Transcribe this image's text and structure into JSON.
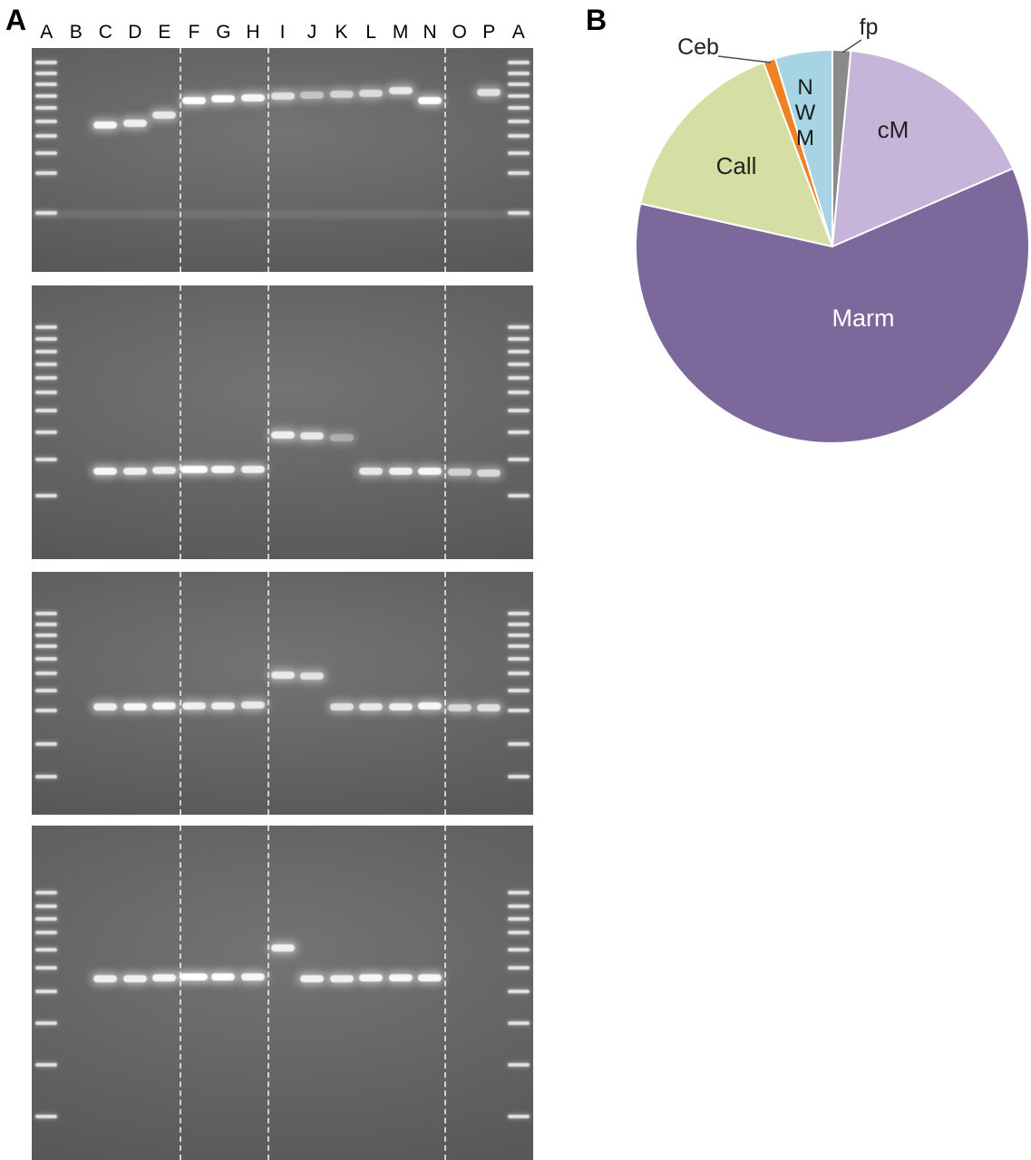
{
  "panels": {
    "a_label": "A",
    "b_label": "B"
  },
  "gel_panel": {
    "lane_labels": [
      "A",
      "B",
      "C",
      "D",
      "E",
      "F",
      "G",
      "H",
      "I",
      "J",
      "K",
      "L",
      "M",
      "N",
      "O",
      "P",
      "A"
    ],
    "group_dividers": [
      0.2941,
      0.4706,
      0.8235
    ],
    "gels": [
      {
        "id": "gel-1",
        "ladder_rungs": [
          0.055,
          0.105,
          0.155,
          0.205,
          0.26,
          0.32,
          0.385,
          0.46,
          0.55,
          0.73
        ],
        "smear_y": 0.745,
        "bands": [
          {
            "lane": "C",
            "y": 0.345,
            "i": 0.95
          },
          {
            "lane": "D",
            "y": 0.335,
            "i": 0.9
          },
          {
            "lane": "E",
            "y": 0.3,
            "i": 0.85
          },
          {
            "lane": "F",
            "y": 0.235,
            "i": 1.0
          },
          {
            "lane": "G",
            "y": 0.228,
            "i": 1.0
          },
          {
            "lane": "H",
            "y": 0.222,
            "i": 0.95
          },
          {
            "lane": "I",
            "y": 0.215,
            "i": 0.8
          },
          {
            "lane": "J",
            "y": 0.212,
            "i": 0.6
          },
          {
            "lane": "K",
            "y": 0.206,
            "i": 0.7
          },
          {
            "lane": "L",
            "y": 0.202,
            "i": 0.75
          },
          {
            "lane": "M",
            "y": 0.19,
            "i": 0.85
          },
          {
            "lane": "N",
            "y": 0.235,
            "i": 1.0
          },
          {
            "lane": "P",
            "y": 0.2,
            "i": 0.8
          }
        ]
      },
      {
        "id": "gel-2",
        "ladder_rungs": [
          0.145,
          0.19,
          0.235,
          0.28,
          0.33,
          0.385,
          0.45,
          0.53,
          0.63,
          0.76
        ],
        "bands": [
          {
            "lane": "C",
            "y": 0.68,
            "i": 0.95
          },
          {
            "lane": "D",
            "y": 0.68,
            "i": 0.9
          },
          {
            "lane": "E",
            "y": 0.675,
            "i": 0.9
          },
          {
            "lane": "F",
            "y": 0.672,
            "i": 1.0,
            "w": 1.15
          },
          {
            "lane": "G",
            "y": 0.672,
            "i": 0.95
          },
          {
            "lane": "H",
            "y": 0.672,
            "i": 0.9
          },
          {
            "lane": "I",
            "y": 0.548,
            "i": 0.9
          },
          {
            "lane": "J",
            "y": 0.551,
            "i": 0.85
          },
          {
            "lane": "K",
            "y": 0.556,
            "i": 0.45
          },
          {
            "lane": "L",
            "y": 0.68,
            "i": 0.85
          },
          {
            "lane": "M",
            "y": 0.68,
            "i": 0.9
          },
          {
            "lane": "N",
            "y": 0.68,
            "i": 0.95
          },
          {
            "lane": "O",
            "y": 0.682,
            "i": 0.7
          },
          {
            "lane": "P",
            "y": 0.684,
            "i": 0.75
          }
        ]
      },
      {
        "id": "gel-3",
        "ladder_rungs": [
          0.165,
          0.21,
          0.255,
          0.3,
          0.35,
          0.41,
          0.48,
          0.565,
          0.7,
          0.835
        ],
        "bands": [
          {
            "lane": "C",
            "y": 0.556,
            "i": 0.9
          },
          {
            "lane": "D",
            "y": 0.556,
            "i": 0.95
          },
          {
            "lane": "E",
            "y": 0.553,
            "i": 0.95
          },
          {
            "lane": "F",
            "y": 0.553,
            "i": 0.9
          },
          {
            "lane": "G",
            "y": 0.553,
            "i": 0.9
          },
          {
            "lane": "H",
            "y": 0.55,
            "i": 0.85
          },
          {
            "lane": "I",
            "y": 0.425,
            "i": 0.85
          },
          {
            "lane": "J",
            "y": 0.428,
            "i": 0.8
          },
          {
            "lane": "K",
            "y": 0.556,
            "i": 0.8
          },
          {
            "lane": "L",
            "y": 0.556,
            "i": 0.85
          },
          {
            "lane": "M",
            "y": 0.556,
            "i": 0.9
          },
          {
            "lane": "N",
            "y": 0.553,
            "i": 0.95
          },
          {
            "lane": "O",
            "y": 0.558,
            "i": 0.75
          },
          {
            "lane": "P",
            "y": 0.56,
            "i": 0.8
          }
        ]
      },
      {
        "id": "gel-4",
        "ladder_rungs": [
          0.195,
          0.235,
          0.275,
          0.315,
          0.365,
          0.42,
          0.49,
          0.585,
          0.71,
          0.865
        ],
        "bands": [
          {
            "lane": "C",
            "y": 0.458,
            "i": 0.9
          },
          {
            "lane": "D",
            "y": 0.458,
            "i": 0.9
          },
          {
            "lane": "E",
            "y": 0.455,
            "i": 0.95
          },
          {
            "lane": "F",
            "y": 0.452,
            "i": 1.0,
            "w": 1.2
          },
          {
            "lane": "G",
            "y": 0.452,
            "i": 1.0
          },
          {
            "lane": "H",
            "y": 0.452,
            "i": 0.95
          },
          {
            "lane": "I",
            "y": 0.366,
            "i": 0.9
          },
          {
            "lane": "J",
            "y": 0.458,
            "i": 0.9
          },
          {
            "lane": "K",
            "y": 0.458,
            "i": 0.9
          },
          {
            "lane": "L",
            "y": 0.455,
            "i": 0.95
          },
          {
            "lane": "M",
            "y": 0.455,
            "i": 0.95
          },
          {
            "lane": "N",
            "y": 0.455,
            "i": 0.95
          }
        ]
      }
    ]
  },
  "chart_data": {
    "type": "pie",
    "title": "",
    "direction": "clockwise",
    "start_angle_deg": 0,
    "units": "percent",
    "legend": "none",
    "slices": [
      {
        "label": "fp",
        "value": 1.5,
        "color": "#8a8a8a"
      },
      {
        "label": "cM",
        "value": 17.0,
        "color": "#c6b5d8"
      },
      {
        "label": "Marm",
        "value": 60.0,
        "color": "#7c689a"
      },
      {
        "label": "Call",
        "value": 15.8,
        "color": "#d5dfa3"
      },
      {
        "label": "Ceb",
        "value": 1.0,
        "color": "#f08122"
      },
      {
        "label": "NWM",
        "value": 4.7,
        "color": "#a6d4e4"
      }
    ],
    "nwm_stack": [
      "N",
      "W",
      "M"
    ]
  }
}
